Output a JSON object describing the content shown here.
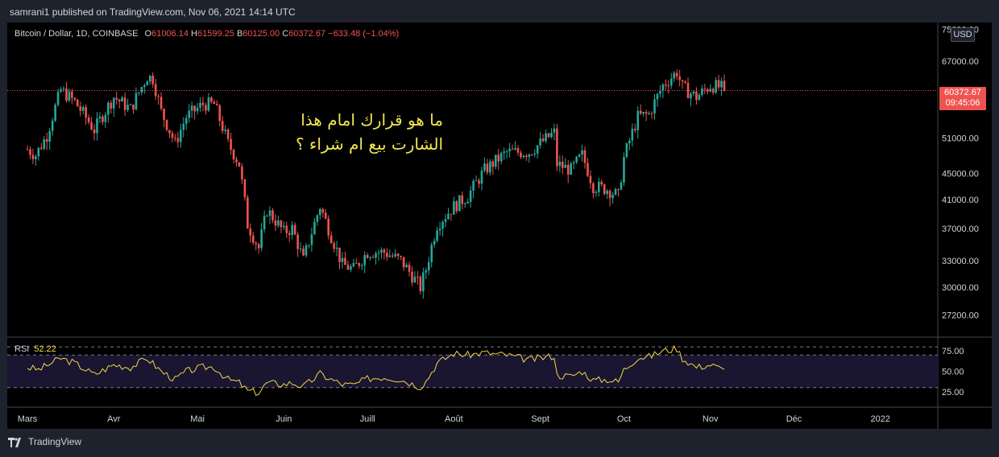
{
  "header": {
    "published_text": "samrani1 published on TradingView.com, Nov 06, 2021 14:14 UTC"
  },
  "legend": {
    "symbol": "Bitcoin / Dollar, 1D, COINBASE",
    "open_label": "O",
    "open": "61006.14",
    "high_label": "H",
    "high": "61599.25",
    "low_label": "B",
    "low": "60125.00",
    "close_label": "C",
    "close": "60372.67",
    "change": "−633.48 (−1.04%)"
  },
  "annotation": {
    "line1": "ما هو قرارك امام هذا",
    "line2": "الشارت بيع ام شراء ؟"
  },
  "currency": "USD",
  "price_tag": {
    "price": "60372.67",
    "countdown": "09:45:06"
  },
  "rsi_legend": {
    "label": "RSI",
    "value": "52.22"
  },
  "footer": {
    "brand": "TradingView"
  },
  "colors": {
    "up": "#26a69a",
    "down": "#ef5350",
    "rsi": "#f2d649",
    "annotation": "#f2e64d"
  },
  "chart_data": [
    {
      "type": "candlestick",
      "title": "Bitcoin / Dollar, 1D, COINBASE",
      "x_tick_labels": [
        "Mars",
        "Avr",
        "Mai",
        "Juin",
        "Juill",
        "Août",
        "Sept",
        "Oct",
        "Nov",
        "Déc",
        "2022"
      ],
      "y_tick_labels": [
        "75000.00",
        "67000.00",
        "51000.00",
        "45000.00",
        "41000.00",
        "37000.00",
        "33000.00",
        "30000.00",
        "27200.00"
      ],
      "y_tick_values": [
        75000,
        67000,
        51000,
        45000,
        41000,
        37000,
        33000,
        30000,
        27200
      ],
      "scale": "log",
      "ylim": [
        25500,
        76000
      ],
      "last_price": 60372.67,
      "anchors": [
        [
          "2021-03-01",
          49000
        ],
        [
          "2021-03-04",
          48000
        ],
        [
          "2021-03-08",
          51500
        ],
        [
          "2021-03-13",
          60500
        ],
        [
          "2021-03-18",
          58000
        ],
        [
          "2021-03-25",
          52500
        ],
        [
          "2021-04-01",
          59000
        ],
        [
          "2021-04-07",
          56500
        ],
        [
          "2021-04-13",
          63500
        ],
        [
          "2021-04-15",
          63000
        ],
        [
          "2021-04-18",
          56000
        ],
        [
          "2021-04-23",
          50000
        ],
        [
          "2021-04-27",
          55000
        ],
        [
          "2021-05-03",
          57500
        ],
        [
          "2021-05-07",
          57500
        ],
        [
          "2021-05-12",
          50000
        ],
        [
          "2021-05-16",
          46500
        ],
        [
          "2021-05-19",
          37500
        ],
        [
          "2021-05-23",
          34500
        ],
        [
          "2021-05-26",
          39500
        ],
        [
          "2021-06-01",
          36500
        ],
        [
          "2021-06-04",
          37000
        ],
        [
          "2021-06-08",
          33000
        ],
        [
          "2021-06-14",
          40000
        ],
        [
          "2021-06-18",
          36000
        ],
        [
          "2021-06-22",
          32500
        ],
        [
          "2021-06-26",
          32000
        ],
        [
          "2021-07-01",
          34000
        ],
        [
          "2021-07-07",
          34000
        ],
        [
          "2021-07-13",
          33000
        ],
        [
          "2021-07-20",
          30000
        ],
        [
          "2021-07-22",
          32000
        ],
        [
          "2021-07-26",
          37500
        ],
        [
          "2021-08-01",
          40000
        ],
        [
          "2021-08-06",
          41500
        ],
        [
          "2021-08-12",
          45500
        ],
        [
          "2021-08-16",
          47000
        ],
        [
          "2021-08-20",
          48500
        ],
        [
          "2021-08-28",
          48500
        ],
        [
          "2021-09-06",
          52000
        ],
        [
          "2021-09-07",
          46500
        ],
        [
          "2021-09-12",
          45500
        ],
        [
          "2021-09-16",
          48000
        ],
        [
          "2021-09-20",
          43000
        ],
        [
          "2021-09-25",
          42500
        ],
        [
          "2021-09-29",
          41500
        ],
        [
          "2021-10-01",
          47500
        ],
        [
          "2021-10-06",
          55000
        ],
        [
          "2021-10-10",
          55500
        ],
        [
          "2021-10-15",
          61500
        ],
        [
          "2021-10-20",
          64500
        ],
        [
          "2021-10-22",
          61000
        ],
        [
          "2021-10-27",
          59000
        ],
        [
          "2021-11-01",
          61500
        ],
        [
          "2021-11-05",
          61000
        ],
        [
          "2021-11-06",
          60372.67
        ]
      ]
    },
    {
      "type": "line",
      "title": "RSI",
      "y_tick_labels": [
        "75.00",
        "50.00",
        "25.00"
      ],
      "y_tick_values": [
        75,
        50,
        25
      ],
      "bands": [
        70,
        30
      ],
      "ylim": [
        15,
        85
      ],
      "anchors": [
        [
          "2021-03-01",
          55
        ],
        [
          "2021-03-05",
          52
        ],
        [
          "2021-03-13",
          66
        ],
        [
          "2021-03-18",
          60
        ],
        [
          "2021-03-25",
          46
        ],
        [
          "2021-04-01",
          58
        ],
        [
          "2021-04-07",
          55
        ],
        [
          "2021-04-13",
          66
        ],
        [
          "2021-04-18",
          50
        ],
        [
          "2021-04-23",
          40
        ],
        [
          "2021-04-27",
          50
        ],
        [
          "2021-05-03",
          55
        ],
        [
          "2021-05-07",
          55
        ],
        [
          "2021-05-12",
          40
        ],
        [
          "2021-05-16",
          36
        ],
        [
          "2021-05-19",
          26
        ],
        [
          "2021-05-23",
          24
        ],
        [
          "2021-05-26",
          36
        ],
        [
          "2021-06-01",
          34
        ],
        [
          "2021-06-04",
          36
        ],
        [
          "2021-06-08",
          31
        ],
        [
          "2021-06-14",
          47
        ],
        [
          "2021-06-18",
          40
        ],
        [
          "2021-06-22",
          34
        ],
        [
          "2021-06-26",
          33
        ],
        [
          "2021-07-01",
          41
        ],
        [
          "2021-07-07",
          43
        ],
        [
          "2021-07-13",
          40
        ],
        [
          "2021-07-20",
          31
        ],
        [
          "2021-07-22",
          38
        ],
        [
          "2021-07-26",
          60
        ],
        [
          "2021-08-01",
          72
        ],
        [
          "2021-08-06",
          70
        ],
        [
          "2021-08-12",
          73
        ],
        [
          "2021-08-16",
          71
        ],
        [
          "2021-08-20",
          70
        ],
        [
          "2021-08-28",
          64
        ],
        [
          "2021-09-06",
          69
        ],
        [
          "2021-09-07",
          45
        ],
        [
          "2021-09-12",
          44
        ],
        [
          "2021-09-16",
          50
        ],
        [
          "2021-09-20",
          39
        ],
        [
          "2021-09-25",
          40
        ],
        [
          "2021-09-29",
          37
        ],
        [
          "2021-10-01",
          52
        ],
        [
          "2021-10-06",
          67
        ],
        [
          "2021-10-10",
          68
        ],
        [
          "2021-10-15",
          75
        ],
        [
          "2021-10-20",
          78
        ],
        [
          "2021-10-22",
          66
        ],
        [
          "2021-10-27",
          55
        ],
        [
          "2021-11-01",
          58
        ],
        [
          "2021-11-05",
          53
        ],
        [
          "2021-11-06",
          52.22
        ]
      ]
    }
  ]
}
